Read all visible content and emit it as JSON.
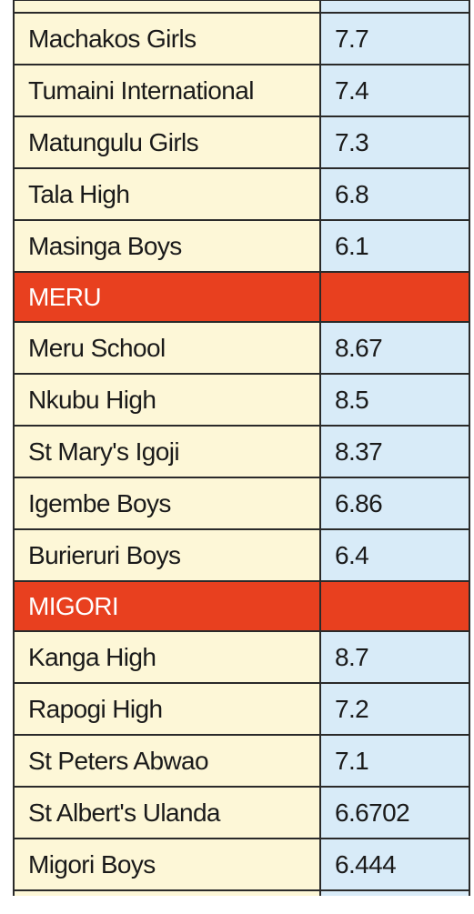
{
  "colors": {
    "section_header": "#e8401f",
    "school_column": "#fdf7d7",
    "score_column": "#d8ebf8",
    "grid": "#2a2a2a"
  },
  "rows": [
    {
      "school": "Machakos Girls",
      "score": "7.7"
    },
    {
      "school": "Tumaini International",
      "score": "7.4"
    },
    {
      "school": "Matungulu Girls",
      "score": "7.3"
    },
    {
      "school": "Tala High",
      "score": "6.8"
    },
    {
      "school": "Masinga Boys",
      "score": "6.1"
    },
    {
      "section": "MERU"
    },
    {
      "school": "Meru School",
      "score": "8.67"
    },
    {
      "school": "Nkubu High",
      "score": "8.5"
    },
    {
      "school": "St Mary's Igoji",
      "score": "8.37"
    },
    {
      "school": "Igembe Boys",
      "score": "6.86"
    },
    {
      "school": "Burieruri Boys",
      "score": "6.4"
    },
    {
      "section": "MIGORI"
    },
    {
      "school": "Kanga High",
      "score": "8.7"
    },
    {
      "school": "Rapogi High",
      "score": "7.2"
    },
    {
      "school": "St Peters Abwao",
      "score": "7.1"
    },
    {
      "school": "St Albert's Ulanda",
      "score": "6.6702"
    },
    {
      "school": "Migori Boys",
      "score": "6.444"
    }
  ]
}
